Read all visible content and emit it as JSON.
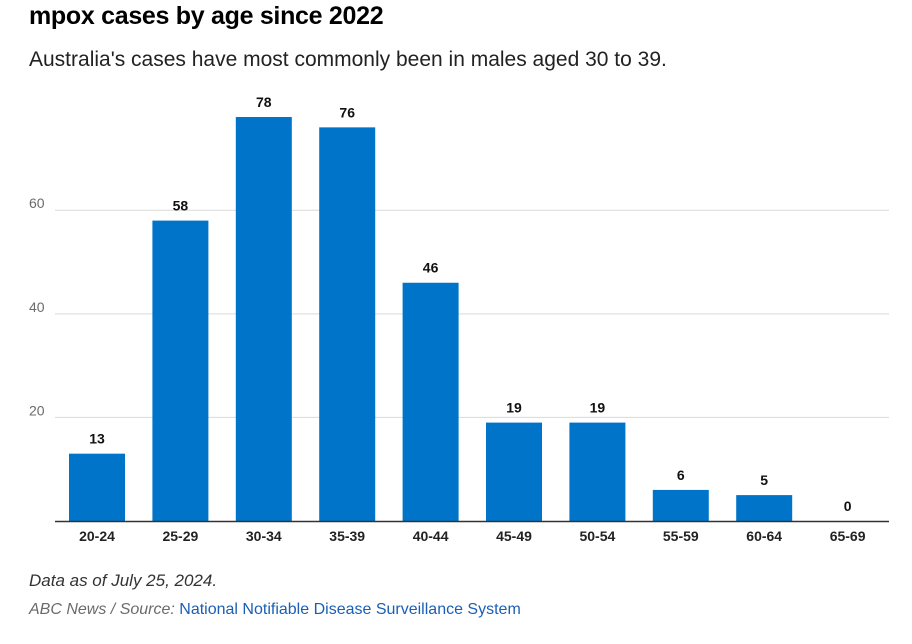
{
  "header": {
    "title": "mpox cases by age since 2022",
    "subtitle": "Australia's cases have most commonly been in males aged 30 to 39."
  },
  "footer": {
    "note": "Data as of July 25, 2024.",
    "source_prefix": "ABC News / Source:",
    "source_link": "National Notifiable Disease Surveillance System"
  },
  "colors": {
    "bar": "#0074c8",
    "grid": "#d9d9d9",
    "axis": "#333333"
  },
  "chart_data": {
    "type": "bar",
    "title": "mpox cases by age since 2022",
    "xlabel": "",
    "ylabel": "",
    "categories": [
      "20-24",
      "25-29",
      "30-34",
      "35-39",
      "40-44",
      "45-49",
      "50-54",
      "55-59",
      "60-64",
      "65-69"
    ],
    "values": [
      13,
      58,
      78,
      76,
      46,
      19,
      19,
      6,
      5,
      0
    ],
    "data_labels": [
      "13",
      "58",
      "78",
      "76",
      "46",
      "19",
      "19",
      "6",
      "5",
      "0"
    ],
    "yticks": [
      20,
      40,
      60
    ],
    "ytick_labels": [
      "20",
      "40",
      "60"
    ],
    "ylim": [
      0,
      78
    ],
    "grid": true
  }
}
